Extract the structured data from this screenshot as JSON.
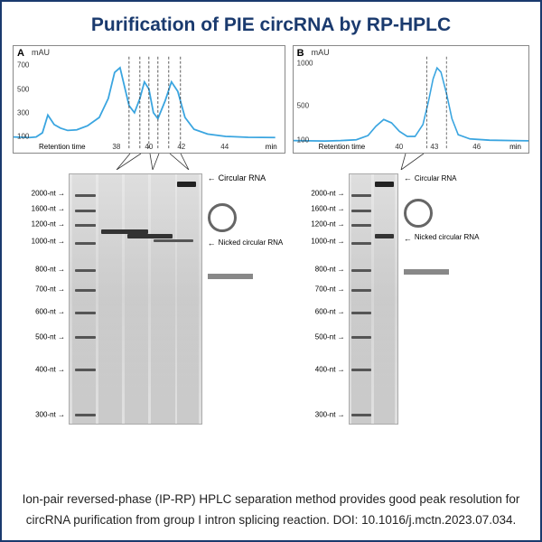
{
  "title": "Purification of PIE circRNA by RP-HPLC",
  "caption": "Ion-pair reversed-phase (IP-RP) HPLC separation method provides good peak resolution for circRNA purification from group I intron splicing reaction. DOI: 10.1016/j.mctn.2023.07.034.",
  "panelA": {
    "label": "A",
    "y_unit": "mAU",
    "y_ticks": [
      100,
      300,
      500,
      700
    ],
    "x_label": "Retention time",
    "x_unit": "min",
    "x_ticks": [
      38,
      40,
      42,
      44
    ],
    "line_color": "#3aa5e0",
    "chromatogram": [
      [
        0,
        95
      ],
      [
        10,
        92
      ],
      [
        18,
        90
      ],
      [
        25,
        95
      ],
      [
        32,
        130
      ],
      [
        38,
        280
      ],
      [
        45,
        200
      ],
      [
        52,
        170
      ],
      [
        60,
        150
      ],
      [
        70,
        155
      ],
      [
        82,
        190
      ],
      [
        95,
        260
      ],
      [
        105,
        420
      ],
      [
        112,
        640
      ],
      [
        118,
        680
      ],
      [
        123,
        520
      ],
      [
        128,
        360
      ],
      [
        134,
        300
      ],
      [
        140,
        420
      ],
      [
        145,
        560
      ],
      [
        150,
        500
      ],
      [
        155,
        300
      ],
      [
        160,
        250
      ],
      [
        168,
        400
      ],
      [
        175,
        560
      ],
      [
        182,
        480
      ],
      [
        190,
        260
      ],
      [
        200,
        160
      ],
      [
        215,
        120
      ],
      [
        235,
        100
      ],
      [
        260,
        92
      ],
      [
        290,
        90
      ]
    ],
    "dash_x": [
      128,
      140,
      150,
      160,
      172,
      185
    ]
  },
  "panelB": {
    "label": "B",
    "y_unit": "mAU",
    "y_ticks": [
      100,
      500,
      1000
    ],
    "x_label": "Retention time",
    "x_unit": "min",
    "x_ticks": [
      40,
      43,
      46
    ],
    "line_color": "#3aa5e0",
    "chromatogram": [
      [
        0,
        90
      ],
      [
        20,
        88
      ],
      [
        40,
        85
      ],
      [
        60,
        90
      ],
      [
        80,
        100
      ],
      [
        95,
        150
      ],
      [
        105,
        260
      ],
      [
        115,
        340
      ],
      [
        125,
        300
      ],
      [
        135,
        200
      ],
      [
        145,
        140
      ],
      [
        155,
        140
      ],
      [
        165,
        280
      ],
      [
        172,
        550
      ],
      [
        178,
        820
      ],
      [
        183,
        950
      ],
      [
        188,
        900
      ],
      [
        195,
        650
      ],
      [
        202,
        350
      ],
      [
        210,
        160
      ],
      [
        225,
        110
      ],
      [
        250,
        95
      ],
      [
        280,
        90
      ],
      [
        300,
        88
      ]
    ],
    "dash_x": [
      170,
      195
    ]
  },
  "ladder": [
    "2000-nt",
    "1600-nt",
    "1200-nt",
    "1000-nt",
    "800-nt",
    "700-nt",
    "600-nt",
    "500-nt",
    "400-nt",
    "300-nt"
  ],
  "ladder_pos": [
    8,
    14,
    20,
    27,
    38,
    46,
    55,
    65,
    78,
    96
  ],
  "annotations": {
    "circular": "Circular RNA",
    "nicked": "Nicked circular RNA"
  }
}
